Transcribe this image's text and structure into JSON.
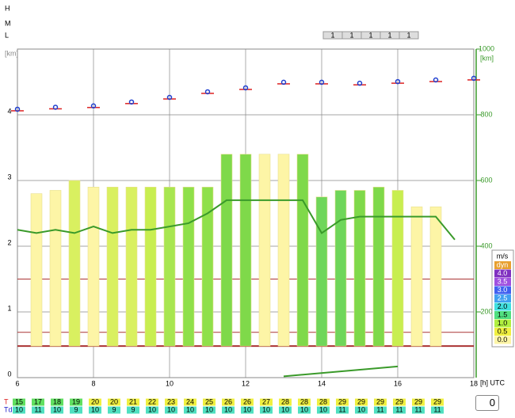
{
  "chart_data": {
    "type": "thermal",
    "levels": [
      "H",
      "M",
      "L"
    ],
    "ylabel": "[km]",
    "y2label": "[km]",
    "xlabel": "[h] UTC",
    "xlim": [
      6,
      18
    ],
    "xticks": [
      6,
      8,
      10,
      12,
      14,
      16,
      18
    ],
    "ylim": [
      0,
      5
    ],
    "yticks": [
      0,
      1,
      2,
      3,
      4
    ],
    "y2lim": [
      0,
      1000
    ],
    "y2ticks": [
      200,
      400,
      600,
      800,
      1000
    ],
    "grid": true,
    "top_strip": [
      "1",
      "1",
      "1",
      "1",
      "1"
    ],
    "bars": {
      "x": [
        6,
        6.5,
        7,
        7.5,
        8,
        8.5,
        9,
        9.5,
        10,
        10.5,
        11,
        11.5,
        12,
        12.5,
        13,
        13.5,
        14,
        14.5,
        15,
        15.5,
        16,
        16.5,
        17
      ],
      "values": [
        null,
        2.8,
        2.85,
        3.0,
        2.9,
        2.9,
        2.9,
        2.9,
        2.9,
        2.9,
        2.9,
        3.4,
        3.4,
        3.4,
        3.4,
        3.4,
        2.75,
        2.85,
        2.85,
        2.9,
        2.85,
        2.6,
        2.6
      ],
      "base": 0.48,
      "colors": [
        "#fdf5a6",
        "#fdf5a6",
        "#fdf5a6",
        "#d9f060",
        "#fdf5a6",
        "#d9f060",
        "#d9f060",
        "#c8ee50",
        "#a8e650",
        "#8fe04a",
        "#8fe04a",
        "#7fd94a",
        "#7fd94a",
        "#fdf5a6",
        "#fdf5a6",
        "#7fd94a",
        "#6fd65a",
        "#6fd65a",
        "#7fd94a",
        "#7fd94a",
        "#c8ee50",
        "#fdf5a6",
        "#fdf5a6"
      ]
    },
    "series": [
      {
        "name": "boundary",
        "color": "#3a9a2a",
        "x": [
          6,
          6.5,
          7,
          7.5,
          8,
          8.5,
          9,
          9.5,
          10,
          10.5,
          11,
          11.5,
          12,
          12.5,
          13,
          13.5,
          14,
          14.5,
          15,
          15.5,
          16,
          16.5,
          17,
          17.5
        ],
        "values": [
          2.25,
          2.2,
          2.25,
          2.2,
          2.3,
          2.2,
          2.25,
          2.25,
          2.3,
          2.35,
          2.5,
          2.7,
          2.7,
          2.7,
          2.7,
          2.7,
          2.2,
          2.4,
          2.45,
          2.45,
          2.45,
          2.45,
          2.45,
          2.1
        ]
      },
      {
        "name": "surface",
        "color": "#3a9a2a",
        "x": [
          13,
          16
        ],
        "values": [
          0.02,
          0.17
        ]
      },
      {
        "name": "markers",
        "axis": "y2",
        "color": "#2040d0",
        "x": [
          6,
          7,
          8,
          9,
          10,
          11,
          12,
          13,
          14,
          15,
          16,
          17,
          18
        ],
        "values": [
          817,
          823,
          827,
          839,
          853,
          870,
          882,
          899,
          899,
          896,
          901,
          906,
          911
        ]
      }
    ],
    "hlines": {
      "values": [
        1.5,
        0.69,
        0.48
      ],
      "color": "#a33"
    },
    "legend": {
      "title": "m/s",
      "items": [
        {
          "label": "dyn",
          "color": "#e8a030"
        },
        {
          "label": "4.0",
          "color": "#8030c0"
        },
        {
          "label": "3.5",
          "color": "#a050e0"
        },
        {
          "label": "3.0",
          "color": "#4060f0"
        },
        {
          "label": "2.5",
          "color": "#40a0f0"
        },
        {
          "label": "2.0",
          "color": "#40e0e0"
        },
        {
          "label": "1.5",
          "color": "#50e080"
        },
        {
          "label": "1.0",
          "color": "#b0f040"
        },
        {
          "label": "0.5",
          "color": "#f0f040"
        },
        {
          "label": "0.0",
          "color": "#fdf5a6"
        }
      ]
    },
    "rows": {
      "T": {
        "label": "T",
        "values": [
          15,
          17,
          18,
          19,
          20,
          20,
          21,
          22,
          23,
          24,
          25,
          26,
          26,
          27,
          28,
          28,
          28,
          29,
          29,
          29,
          29,
          29,
          29
        ]
      },
      "Td": {
        "label": "Td",
        "values": [
          10,
          11,
          10,
          9,
          10,
          9,
          9,
          10,
          10,
          10,
          10,
          10,
          10,
          10,
          10,
          10,
          10,
          11,
          10,
          11,
          11,
          11,
          11
        ]
      }
    },
    "offset_input": "0"
  }
}
